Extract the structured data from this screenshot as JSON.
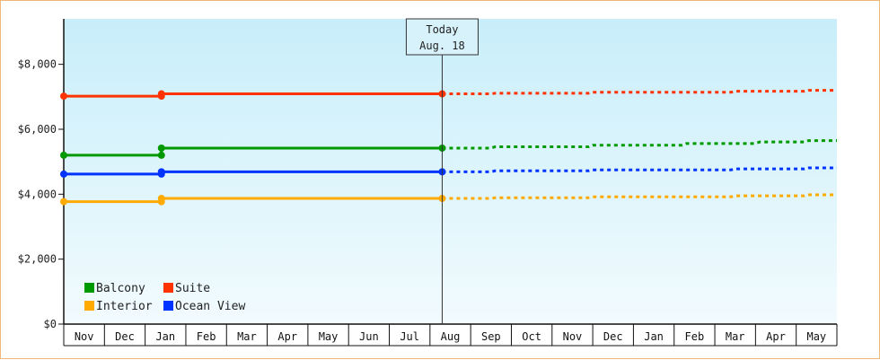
{
  "chart_data": {
    "type": "line",
    "today": {
      "line1": "Today",
      "line2": "Aug. 18",
      "x_index": 9.3
    },
    "y_axis": {
      "min": 0,
      "max": 9400,
      "ticks": [
        0,
        2000,
        4000,
        6000,
        8000
      ],
      "tick_labels": [
        "$0",
        "$2,000",
        "$4,000",
        "$6,000",
        "$8,000"
      ]
    },
    "months": [
      "Nov",
      "Dec",
      "Jan",
      "Feb",
      "Mar",
      "Apr",
      "May",
      "Jun",
      "Jul",
      "Aug",
      "Sep",
      "Oct",
      "Nov",
      "Dec",
      "Jan",
      "Feb",
      "Mar",
      "Apr",
      "May"
    ],
    "legend_order": [
      "Balcony",
      "Suite",
      "Interior",
      "Ocean View"
    ],
    "series": [
      {
        "name": "Suite",
        "color": "#ff3300",
        "history": [
          [
            0,
            7020
          ],
          [
            2.4,
            7020
          ],
          [
            2.4,
            7090
          ],
          [
            9.3,
            7090
          ]
        ],
        "markers": [
          [
            0,
            7020
          ],
          [
            2.4,
            7020
          ],
          [
            2.4,
            7090
          ],
          [
            9.3,
            7090
          ]
        ],
        "forecast": [
          [
            9.3,
            7090
          ],
          [
            10.5,
            7090
          ],
          [
            10.6,
            7110
          ],
          [
            12.9,
            7110
          ],
          [
            13.0,
            7140
          ],
          [
            16.4,
            7140
          ],
          [
            16.5,
            7170
          ],
          [
            18.2,
            7170
          ],
          [
            18.3,
            7200
          ],
          [
            19.0,
            7200
          ]
        ]
      },
      {
        "name": "Balcony",
        "color": "#009900",
        "history": [
          [
            0,
            5200
          ],
          [
            2.4,
            5200
          ],
          [
            2.4,
            5420
          ],
          [
            9.3,
            5420
          ]
        ],
        "markers": [
          [
            0,
            5200
          ],
          [
            2.4,
            5200
          ],
          [
            2.4,
            5420
          ],
          [
            9.3,
            5420
          ]
        ],
        "forecast": [
          [
            9.3,
            5420
          ],
          [
            10.5,
            5420
          ],
          [
            10.6,
            5460
          ],
          [
            12.9,
            5460
          ],
          [
            13.0,
            5510
          ],
          [
            15.2,
            5510
          ],
          [
            15.3,
            5560
          ],
          [
            17.0,
            5560
          ],
          [
            17.1,
            5610
          ],
          [
            18.2,
            5610
          ],
          [
            18.3,
            5650
          ],
          [
            19.0,
            5650
          ]
        ]
      },
      {
        "name": "Ocean View",
        "color": "#0033ff",
        "history": [
          [
            0,
            4620
          ],
          [
            2.4,
            4620
          ],
          [
            2.4,
            4690
          ],
          [
            9.3,
            4690
          ]
        ],
        "markers": [
          [
            0,
            4620
          ],
          [
            2.4,
            4620
          ],
          [
            2.4,
            4690
          ],
          [
            9.3,
            4690
          ]
        ],
        "forecast": [
          [
            9.3,
            4690
          ],
          [
            10.5,
            4690
          ],
          [
            10.6,
            4720
          ],
          [
            12.9,
            4720
          ],
          [
            13.0,
            4750
          ],
          [
            16.4,
            4750
          ],
          [
            16.5,
            4780
          ],
          [
            18.2,
            4780
          ],
          [
            18.3,
            4810
          ],
          [
            19.0,
            4810
          ]
        ]
      },
      {
        "name": "Interior",
        "color": "#ffaa00",
        "history": [
          [
            0,
            3770
          ],
          [
            2.4,
            3770
          ],
          [
            2.4,
            3870
          ],
          [
            9.3,
            3870
          ]
        ],
        "markers": [
          [
            0,
            3770
          ],
          [
            2.4,
            3770
          ],
          [
            2.4,
            3870
          ],
          [
            9.3,
            3870
          ]
        ],
        "forecast": [
          [
            9.3,
            3870
          ],
          [
            10.5,
            3870
          ],
          [
            10.6,
            3890
          ],
          [
            12.9,
            3890
          ],
          [
            13.0,
            3920
          ],
          [
            16.4,
            3920
          ],
          [
            16.5,
            3950
          ],
          [
            18.2,
            3950
          ],
          [
            18.3,
            3980
          ],
          [
            19.0,
            3980
          ]
        ]
      }
    ]
  }
}
